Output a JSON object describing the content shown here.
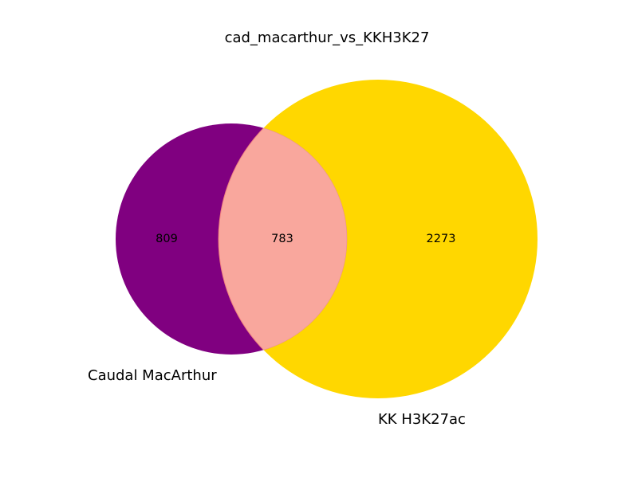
{
  "chart_data": {
    "type": "venn",
    "title": "cad_macarthur_vs_KKH3K27",
    "sets": [
      {
        "name": "Caudal MacArthur",
        "color": "#800080"
      },
      {
        "name": "KK H3K27ac",
        "color": "#FFD700"
      }
    ],
    "regions": {
      "only_a": 809,
      "intersection": 783,
      "only_b": 2273
    },
    "intersection_color": "#F9A79D"
  }
}
